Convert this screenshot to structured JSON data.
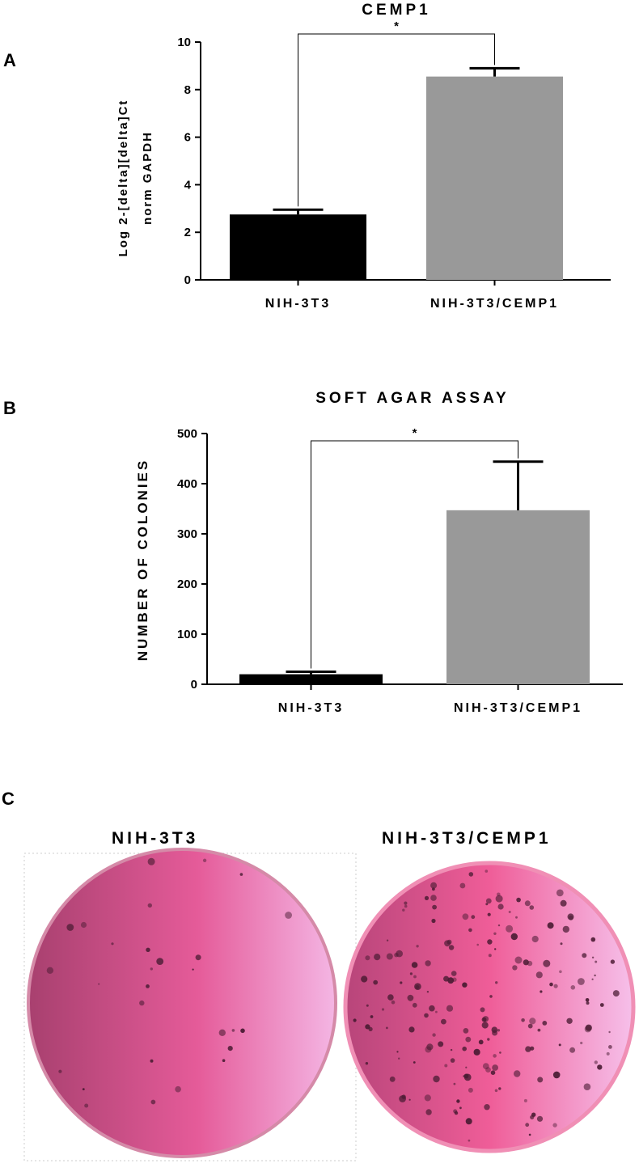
{
  "panels": {
    "a_letter": "A",
    "b_letter": "B",
    "c_letter": "C"
  },
  "chart_data": [
    {
      "type": "bar",
      "title": "CEMP1",
      "categories": [
        "NIH-3T3",
        "NIH-3T3/CEMP1"
      ],
      "values": [
        2.75,
        8.55
      ],
      "errors": [
        0.2,
        0.35
      ],
      "ylabel_line1": "Log 2-[delta][delta]Ct",
      "ylabel_line2": "norm GAPDH",
      "xlabel": "",
      "ylim": [
        0,
        10
      ],
      "yticks": [
        0,
        2,
        4,
        6,
        8,
        10
      ],
      "significance": "*",
      "colors": [
        "#000000",
        "#999999"
      ],
      "grid": false
    },
    {
      "type": "bar",
      "title": "SOFT AGAR ASSAY",
      "categories": [
        "NIH-3T3",
        "NIH-3T3/CEMP1"
      ],
      "values": [
        20,
        347
      ],
      "errors": [
        5,
        97
      ],
      "ylabel": "NUMBER OF COLONIES",
      "xlabel": "",
      "ylim": [
        0,
        500
      ],
      "yticks": [
        0,
        100,
        200,
        300,
        400,
        500
      ],
      "significance": "*",
      "colors": [
        "#000000",
        "#999999"
      ],
      "grid": false
    }
  ],
  "plates": {
    "left_label": "NIH-3T3",
    "right_label": "NIH-3T3/CEMP1",
    "plate_color": "#e0609a",
    "colony_color": "#4a1b33"
  }
}
